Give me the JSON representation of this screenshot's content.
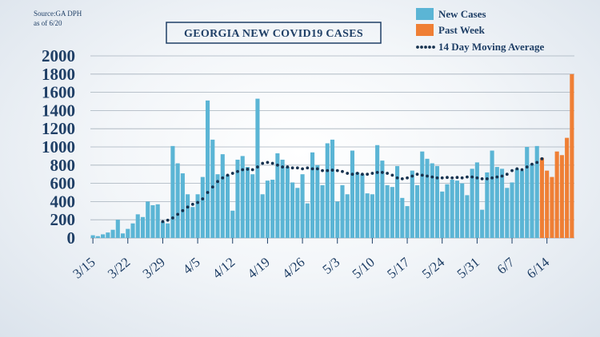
{
  "source_line1": "Source:GA DPH",
  "source_line2": "as of 6/20",
  "colors": {
    "new_cases": "#5bb5d5",
    "past_week": "#ef7f35",
    "text": "#1f3f66",
    "grid": "#a6b1bc"
  },
  "chart_data": {
    "type": "bar",
    "title": "GEORGIA NEW COVID19 CASES",
    "xlabel": "",
    "ylabel": "",
    "ylim": [
      0,
      2000
    ],
    "yticks": [
      0,
      200,
      400,
      600,
      800,
      1000,
      1200,
      1400,
      1600,
      1800,
      2000
    ],
    "x_tick_labels": [
      "3/15",
      "3/22",
      "3/29",
      "4/5",
      "4/12",
      "4/19",
      "4/26",
      "5/3",
      "5/10",
      "5/17",
      "5/24",
      "5/31",
      "6/7",
      "6/14"
    ],
    "legend_placement": "top-right",
    "grid": true,
    "first_day": "3/15",
    "series": [
      {
        "name": "New Cases",
        "kind": "bar",
        "start_day": "3/15",
        "values": [
          30,
          20,
          40,
          60,
          90,
          200,
          50,
          100,
          160,
          260,
          230,
          400,
          360,
          370,
          180,
          160,
          1010,
          820,
          710,
          480,
          340,
          480,
          670,
          1510,
          1080,
          700,
          920,
          690,
          300,
          860,
          900,
          780,
          700,
          1530,
          480,
          630,
          640,
          930,
          860,
          780,
          610,
          550,
          700,
          380,
          940,
          800,
          580,
          1040,
          1080,
          400,
          580,
          480,
          960,
          720,
          700,
          490,
          480,
          1020,
          850,
          580,
          560,
          790,
          440,
          350,
          740,
          580,
          950,
          870,
          820,
          790,
          510,
          590,
          640,
          630,
          600,
          470,
          760,
          830,
          310,
          720,
          960,
          780,
          760,
          550,
          610,
          760,
          740,
          1000,
          810,
          1010
        ]
      },
      {
        "name": "Past Week",
        "kind": "bar",
        "start_day": "6/13",
        "values": [
          880,
          740,
          670,
          950,
          910,
          1100,
          1800
        ]
      },
      {
        "name": "14 Day Moving Average",
        "kind": "line",
        "start_day": "3/29",
        "values": [
          180,
          195,
          220,
          260,
          300,
          340,
          370,
          390,
          430,
          500,
          560,
          620,
          660,
          690,
          710,
          730,
          750,
          755,
          750,
          780,
          820,
          830,
          820,
          800,
          780,
          780,
          770,
          770,
          760,
          770,
          760,
          760,
          740,
          740,
          745,
          740,
          730,
          710,
          700,
          710,
          700,
          700,
          710,
          720,
          720,
          710,
          690,
          660,
          650,
          660,
          680,
          700,
          690,
          680,
          670,
          660,
          660,
          665,
          660,
          665,
          660,
          670,
          670,
          660,
          650,
          650,
          660,
          670,
          680,
          700,
          740,
          760,
          750,
          780,
          810,
          830,
          870
        ]
      }
    ]
  }
}
